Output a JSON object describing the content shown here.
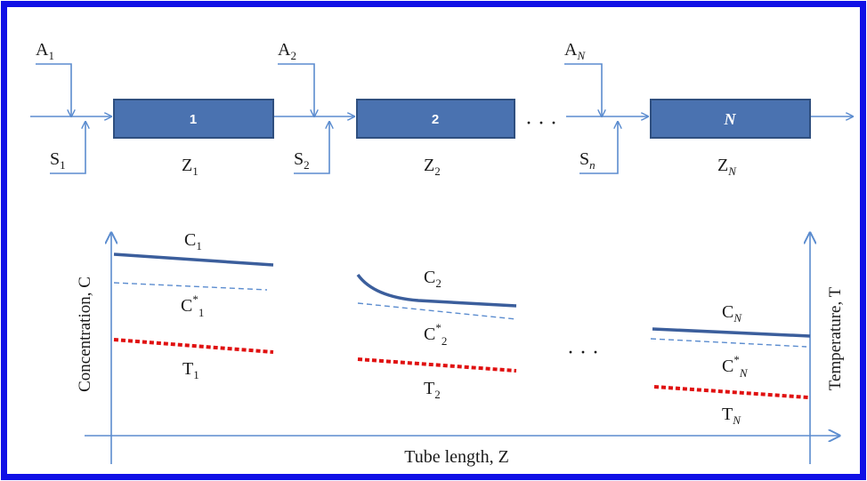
{
  "reactors": [
    {
      "number": "1",
      "feed_a": {
        "base": "A",
        "sub": "1"
      },
      "feed_s": {
        "base": "S",
        "sub": "1"
      },
      "zone": {
        "base": "Z",
        "sub": "1"
      }
    },
    {
      "number": "2",
      "feed_a": {
        "base": "A",
        "sub": "2"
      },
      "feed_s": {
        "base": "S",
        "sub": "2"
      },
      "zone": {
        "base": "Z",
        "sub": "2"
      }
    },
    {
      "number": "N",
      "feed_a": {
        "base": "A",
        "sub": "N"
      },
      "feed_s": {
        "base": "S",
        "sub": "n"
      },
      "zone": {
        "base": "Z",
        "sub": "N"
      }
    }
  ],
  "ellipsis": "· · ·",
  "curve_labels": [
    {
      "base": "C",
      "sub": "1"
    },
    {
      "base": "C",
      "sup": "*",
      "sub": "1"
    },
    {
      "base": "T",
      "sub": "1"
    },
    {
      "base": "C",
      "sub": "2"
    },
    {
      "base": "C",
      "sup": "*",
      "sub": "2"
    },
    {
      "base": "T",
      "sub": "2"
    },
    {
      "base": "C",
      "sub": "N"
    },
    {
      "base": "C",
      "sup": "*",
      "sub": "N"
    },
    {
      "base": "T",
      "sub": "N"
    }
  ],
  "axes": {
    "left_label": "Concentration, C",
    "right_label": "Temperature, T",
    "bottom_label": "Tube length, Z"
  },
  "colors": {
    "border": "#1010e6",
    "box_fill": "#4a72b0",
    "box_stroke": "#2f4f7f",
    "arrow": "#5b8ccf",
    "conc_line": "#3b5e9c",
    "dashed_line": "#5b8ccf",
    "temp_line": "#e01010"
  }
}
